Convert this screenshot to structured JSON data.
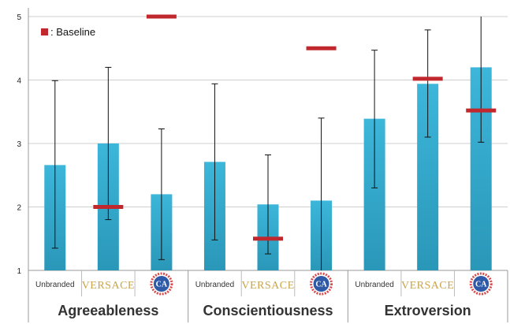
{
  "chart_data": {
    "type": "bar",
    "ylim": [
      1,
      5
    ],
    "yticks": [
      1,
      2,
      3,
      4,
      5
    ],
    "grid": true,
    "legend": {
      "label": ": Baseline",
      "placement": "top-left",
      "color": "#c0282d"
    },
    "groups": [
      {
        "name": "Agreeableness",
        "bars": [
          {
            "label": "Unbranded",
            "value": 2.66,
            "err_low": 1.35,
            "err_high": 3.99,
            "baseline": null
          },
          {
            "label": "VERSACE",
            "value": 3.0,
            "err_low": 1.8,
            "err_high": 4.2,
            "baseline": 2.0
          },
          {
            "label": "CA",
            "value": 2.2,
            "err_low": 1.17,
            "err_high": 3.23,
            "baseline": 5.0
          }
        ]
      },
      {
        "name": "Conscientiousness",
        "bars": [
          {
            "label": "Unbranded",
            "value": 2.71,
            "err_low": 1.48,
            "err_high": 3.94,
            "baseline": null
          },
          {
            "label": "VERSACE",
            "value": 2.04,
            "err_low": 1.26,
            "err_high": 2.82,
            "baseline": 1.5
          },
          {
            "label": "CA",
            "value": 2.1,
            "err_low": 0.8,
            "err_high": 3.4,
            "baseline": 4.5
          }
        ]
      },
      {
        "name": "Extroversion",
        "bars": [
          {
            "label": "Unbranded",
            "value": 3.39,
            "err_low": 2.3,
            "err_high": 4.47,
            "baseline": null
          },
          {
            "label": "VERSACE",
            "value": 3.94,
            "err_low": 3.1,
            "err_high": 4.79,
            "baseline": 4.02
          },
          {
            "label": "CA",
            "value": 4.2,
            "err_low": 3.02,
            "err_high": 5.38,
            "baseline": 3.52
          }
        ]
      }
    ]
  },
  "colors": {
    "bar": "#33a9cc",
    "baseline": "#c0282d",
    "grid": "#cfcfcf",
    "logo_ca": "#2e5aa8",
    "logo_ring": "#d9484a",
    "versace": "#c9a44a"
  }
}
